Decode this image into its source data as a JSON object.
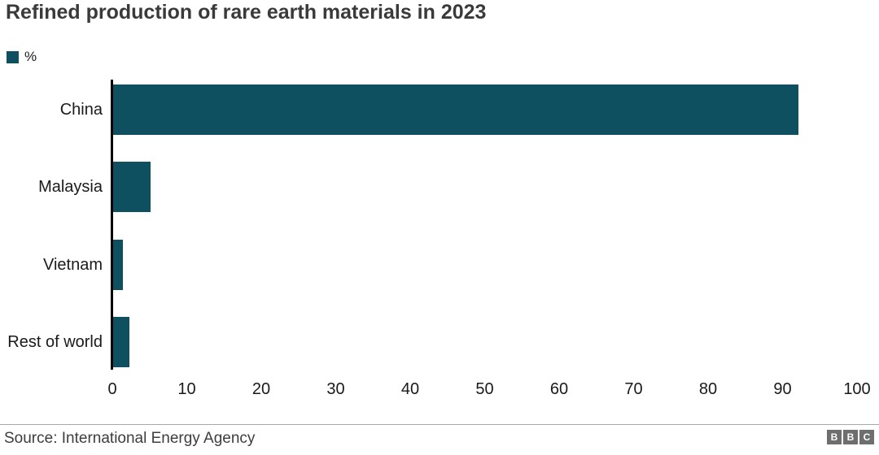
{
  "chart_data": {
    "type": "bar",
    "orientation": "horizontal",
    "title": "Refined production of rare earth materials in 2023",
    "legend_label": "%",
    "legend_position": "top-left",
    "categories": [
      "China",
      "Malaysia",
      "Vietnam",
      "Rest of world"
    ],
    "values": [
      92,
      5,
      1.3,
      2.2
    ],
    "xlim": [
      0,
      100
    ],
    "x_ticks": [
      0,
      10,
      20,
      30,
      40,
      50,
      60,
      70,
      80,
      90,
      100
    ],
    "grid": false,
    "bar_color": "#0e4f60",
    "source": "Source: International Energy Agency",
    "logo_letters": [
      "B",
      "B",
      "C"
    ]
  }
}
